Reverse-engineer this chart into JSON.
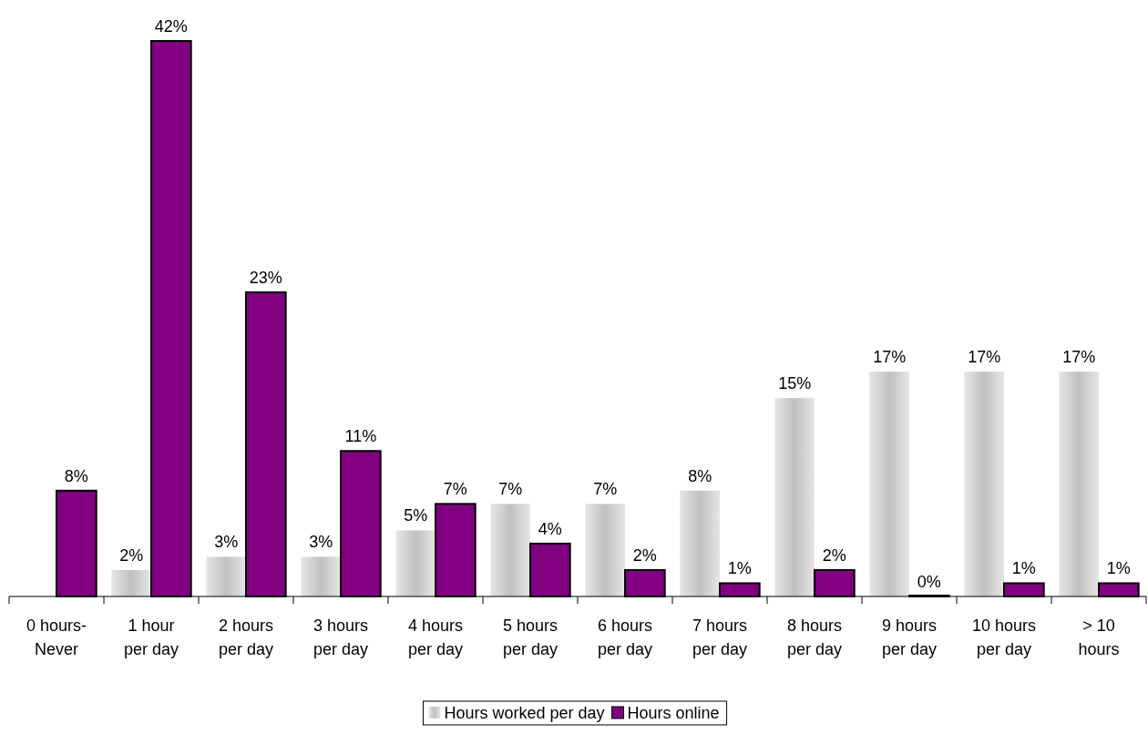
{
  "chart_data": {
    "type": "bar",
    "categories": [
      "0 hours-Never",
      "1 hour per day",
      "2 hours per day",
      "3 hours per day",
      "4 hours per day",
      "5 hours per day",
      "6 hours per day",
      "7 hours per day",
      "8 hours per day",
      "9 hours per day",
      "10 hours per day",
      "> 10 hours"
    ],
    "series": [
      {
        "name": "Hours worked per day",
        "color": "#c0c0c0",
        "values": [
          null,
          2,
          3,
          3,
          5,
          7,
          7,
          8,
          15,
          17,
          17,
          17
        ],
        "value_labels": [
          null,
          "2%",
          "3%",
          "3%",
          "5%",
          "7%",
          "7%",
          "8%",
          "15%",
          "17%",
          "17%",
          "17%"
        ]
      },
      {
        "name": "Hours online",
        "color": "#800080",
        "values": [
          8,
          42,
          23,
          11,
          7,
          4,
          2,
          1,
          2,
          0,
          1,
          1
        ],
        "value_labels": [
          "8%",
          "42%",
          "23%",
          "11%",
          "7%",
          "4%",
          "2%",
          "1%",
          "2%",
          "0%",
          "1%",
          "1%"
        ]
      }
    ],
    "legend": "bottom"
  }
}
